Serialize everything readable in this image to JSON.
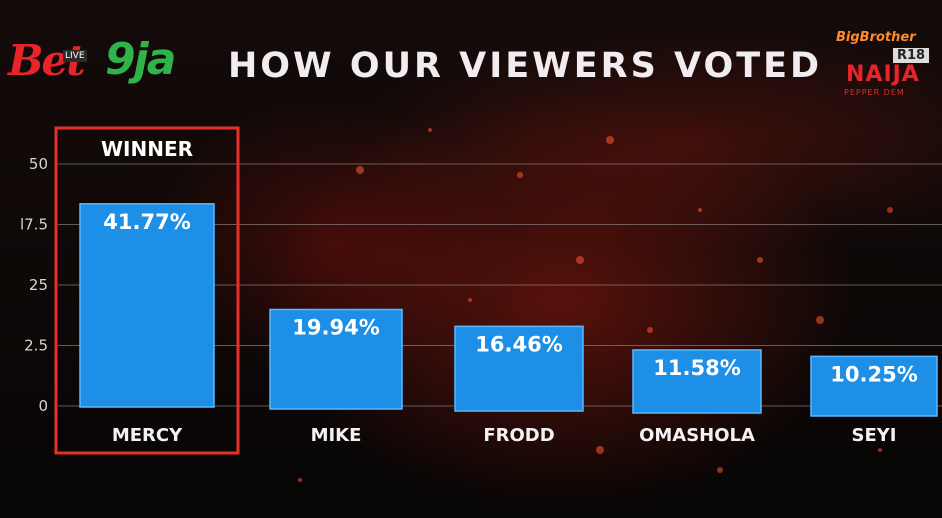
{
  "header": {
    "title": "HOW OUR VIEWERS VOTED",
    "logo_left": {
      "part1": "Bet",
      "part2": "9ja",
      "live": "LIVE"
    },
    "logo_right": {
      "line1": "BigBrother",
      "badge": "R18",
      "line2": "NAIJA",
      "line3": "PEPPER DEM"
    }
  },
  "winner_label": "WINNER",
  "colors": {
    "bar": "#1e8fe6",
    "bar_edge": "#5ab8ff",
    "winner_frame": "#e8302a",
    "gridline": "#8a7d7f"
  },
  "chart_data": {
    "type": "bar",
    "categories": [
      "MERCY",
      "MIKE",
      "FRODD",
      "OMASHOLA",
      "SEYI"
    ],
    "values": [
      41.77,
      19.94,
      16.46,
      11.58,
      10.25
    ],
    "value_labels": [
      "41.77%",
      "19.94%",
      "16.46%",
      "11.58%",
      "10.25%"
    ],
    "title": "HOW OUR VIEWERS VOTED",
    "xlabel": "",
    "ylabel": "",
    "ylim": [
      0,
      50
    ],
    "y_tick_labels": [
      "50",
      "l7.5",
      "25",
      "2.5",
      "0"
    ],
    "grid": true,
    "highlight": {
      "category": "MERCY",
      "label": "WINNER"
    }
  }
}
